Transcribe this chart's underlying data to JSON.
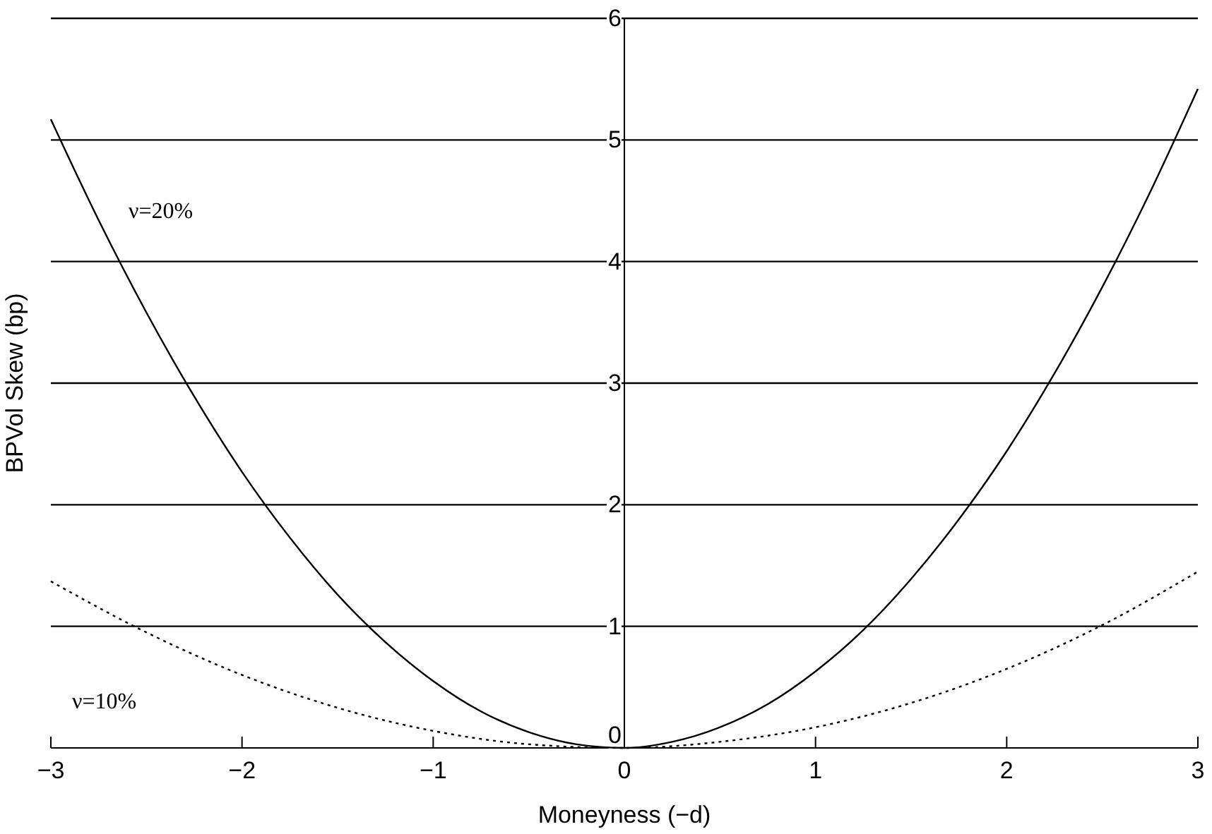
{
  "chart_data": {
    "type": "line",
    "xlabel": "Moneyness (−d)",
    "ylabel": "BPVol Skew (bp)",
    "xlim": [
      -3,
      3
    ],
    "ylim": [
      0,
      6
    ],
    "xticks": [
      {
        "value": -3,
        "label": "−3"
      },
      {
        "value": -2,
        "label": "−2"
      },
      {
        "value": -1,
        "label": "−1"
      },
      0,
      1,
      2,
      3
    ],
    "yticks": [
      0,
      1,
      2,
      3,
      4,
      5,
      6
    ],
    "grid": "y",
    "x": [
      -3,
      -2.75,
      -2.5,
      -2.25,
      -2,
      -1.75,
      -1.5,
      -1.25,
      -1,
      -0.75,
      -0.5,
      -0.25,
      0,
      0.25,
      0.5,
      0.75,
      1,
      1.25,
      1.5,
      1.75,
      2,
      2.25,
      2.5,
      2.75,
      3
    ],
    "series": [
      {
        "name": "ν=20%",
        "color": "#000000",
        "line_style": "solid",
        "values": [
          5.17,
          4.34,
          3.58,
          2.89,
          2.27,
          1.73,
          1.26,
          0.87,
          0.55,
          0.3,
          0.13,
          0.03,
          0,
          0.05,
          0.17,
          0.36,
          0.63,
          0.97,
          1.39,
          1.88,
          2.44,
          3.08,
          3.79,
          4.57,
          5.42
        ]
      },
      {
        "name": "ν=10%",
        "color": "#000000",
        "line_style": "dotted",
        "x": [
          -3,
          -2.5,
          -2,
          -1.5,
          -1,
          -0.5,
          0,
          0.5,
          1,
          1.5,
          2,
          2.5,
          3
        ],
        "values": [
          1.37,
          0.95,
          0.6,
          0.33,
          0.14,
          0.03,
          0,
          0.05,
          0.17,
          0.37,
          0.65,
          1.01,
          1.45
        ]
      }
    ]
  }
}
